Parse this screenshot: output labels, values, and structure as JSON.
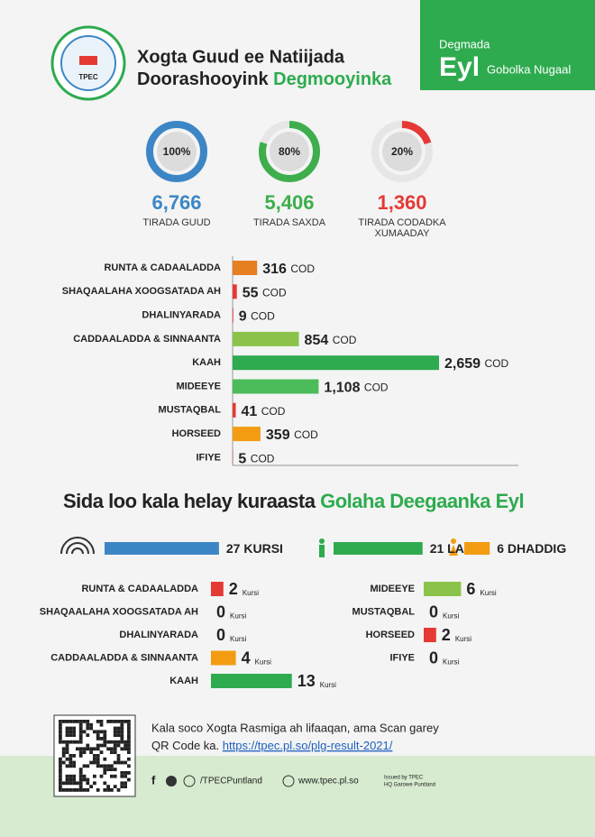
{
  "header": {
    "logo_text": "TPEC",
    "title_line1": "Xogta Guud ee Natiijada",
    "title_line2": "Doorashooyink",
    "title_highlight": "Degmooyinka",
    "district_label": "Degmada",
    "district": "Eyl",
    "region": "Gobolka Nugaal"
  },
  "turnout": {
    "values": [
      100,
      80,
      20
    ],
    "value_labels": [
      "100%",
      "80%",
      "20%"
    ],
    "totals": [
      6766,
      5406,
      1360
    ],
    "total_labels": [
      "6,766",
      "5,406",
      "1,360"
    ],
    "captions": [
      "TIRADA GUUD",
      "TIRADA SAXDA",
      "TIRADA CODADKA XUMAADAY"
    ],
    "colors": [
      "#3d86c6",
      "#3dae4b",
      "#e53935"
    ]
  },
  "votes": {
    "categories": [
      "RUNTA & CADAALADDA",
      "SHAQAALAHA XOOGSATADA AH",
      "DHALINYARADA",
      "CADDAALADDA & SINNAANTA",
      "KAAH",
      "MIDEEYE",
      "MUSTAQBAL",
      "HORSEED",
      "IFIYE"
    ],
    "values": [
      316,
      55,
      9,
      854,
      2659,
      1108,
      41,
      359,
      5
    ],
    "value_labels": [
      "316",
      "55",
      "9",
      "854",
      "2,659",
      "1,108",
      "41",
      "359",
      "5"
    ],
    "unit": "COD",
    "colors": [
      "#e67e22",
      "#e53935",
      "#e53935",
      "#8bc34a",
      "#2eab4f",
      "#4cbb5a",
      "#e53935",
      "#f39c12",
      "#e53935"
    ]
  },
  "seats": {
    "title": "Sida loo kala helay kuraasta",
    "title_highlight": "Golaha Deegaanka Eyl",
    "total": 27,
    "total_unit": "KURSI",
    "male": 21,
    "male_unit": "LAB",
    "female": 6,
    "female_unit": "DHADDIG",
    "colors": {
      "total": "#3d86c6",
      "male": "#2eab4f",
      "female": "#f39c12"
    },
    "categories": [
      "RUNTA & CADAALADDA",
      "SHAQAALAHA XOOGSATADA AH",
      "DHALINYARADA",
      "CADDAALADDA & SINNAANTA",
      "KAAH",
      "MIDEEYE",
      "MUSTAQBAL",
      "HORSEED",
      "IFIYE"
    ],
    "values": [
      2,
      0,
      0,
      4,
      13,
      6,
      0,
      2,
      0
    ],
    "unit": "Kursi",
    "party_colors": [
      "#e53935",
      "#e53935",
      "#e53935",
      "#f39c12",
      "#2eab4f",
      "#8bc34a",
      "#e53935",
      "#e53935",
      "#e53935"
    ]
  },
  "footer": {
    "note": "Kala soco Xogta Rasmiga ah lifaaqan, ama Scan garey",
    "note2": "QR Code ka.",
    "link": "https://tpec.pl.so/plg-result-2021/",
    "social": "/TPECPuntland",
    "website": "www.tpec.pl.so",
    "issued": "Issued by TPEC",
    "hq": "HQ Garowe Puntland"
  }
}
